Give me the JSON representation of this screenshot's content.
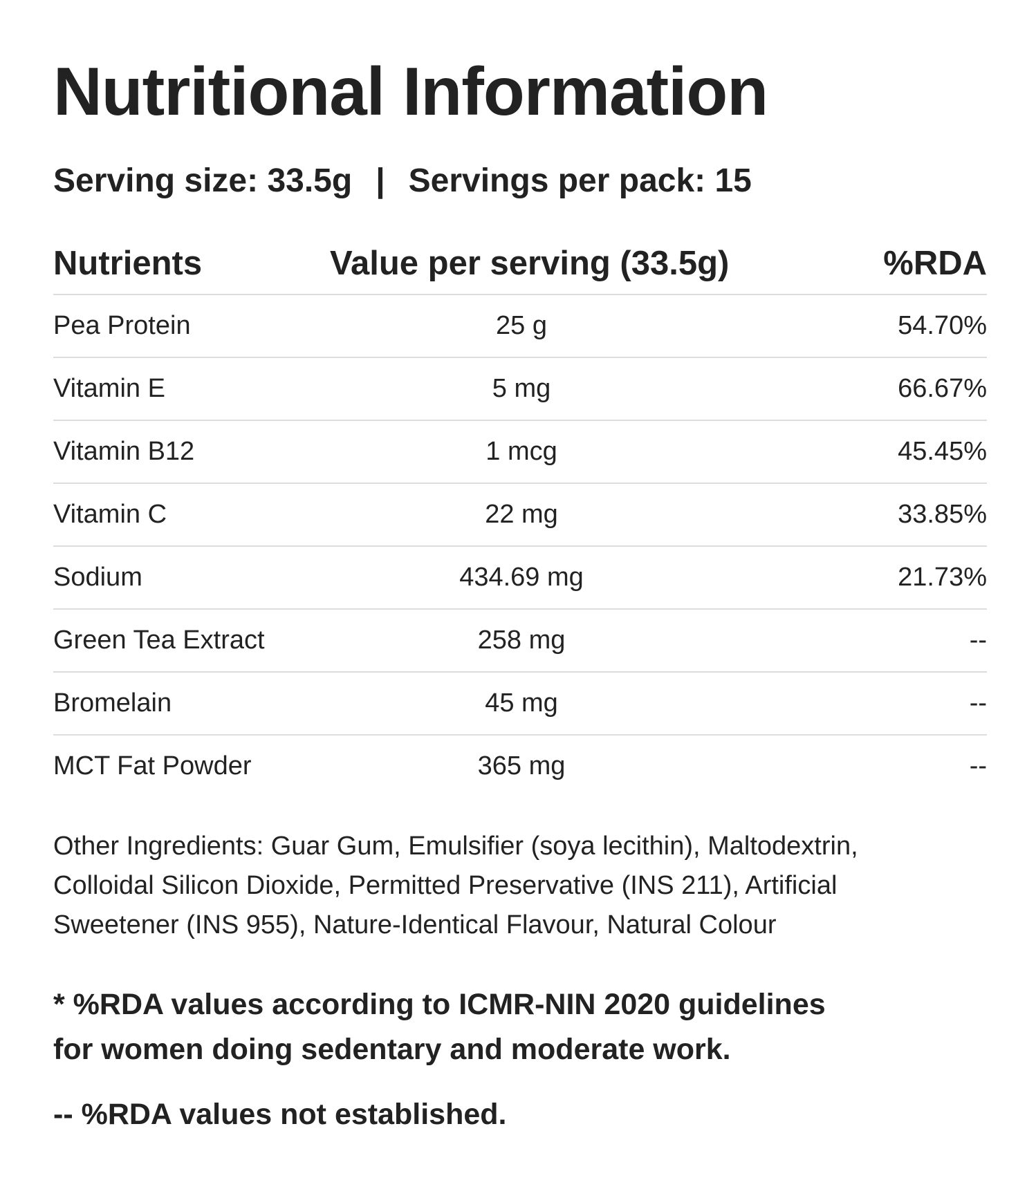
{
  "title": "Nutritional Information",
  "serving": {
    "size": "Serving size: 33.5g",
    "separator": "|",
    "per_pack": "Servings per pack: 15"
  },
  "table": {
    "headers": {
      "nutrients": "Nutrients",
      "value": "Value per serving (33.5g)",
      "rda": "%RDA"
    },
    "rows": [
      {
        "name": "Pea Protein",
        "value": "25 g",
        "rda": "54.70%"
      },
      {
        "name": "Vitamin E",
        "value": "5 mg",
        "rda": "66.67%"
      },
      {
        "name": "Vitamin B12",
        "value": "1 mcg",
        "rda": "45.45%"
      },
      {
        "name": "Vitamin C",
        "value": "22 mg",
        "rda": "33.85%"
      },
      {
        "name": "Sodium",
        "value": "434.69 mg",
        "rda": "21.73%"
      },
      {
        "name": "Green Tea Extract",
        "value": "258 mg",
        "rda": "--"
      },
      {
        "name": "Bromelain",
        "value": "45 mg",
        "rda": "--"
      },
      {
        "name": "MCT Fat Powder",
        "value": "365 mg",
        "rda": "--"
      }
    ]
  },
  "ingredients": {
    "line1": "Other Ingredients: Guar Gum, Emulsifier (soya lecithin), Maltodextrin,",
    "line2": "Colloidal Silicon Dioxide, Permitted Preservative (INS 211), Artificial",
    "line3": "Sweetener (INS 955), Nature-Identical Flavour, Natural Colour"
  },
  "notes": {
    "rda_line1": "* %RDA values according to ICMR-NIN 2020 guidelines",
    "rda_line2": "for women doing sedentary and moderate work.",
    "not_established": "-- %RDA values not established."
  }
}
